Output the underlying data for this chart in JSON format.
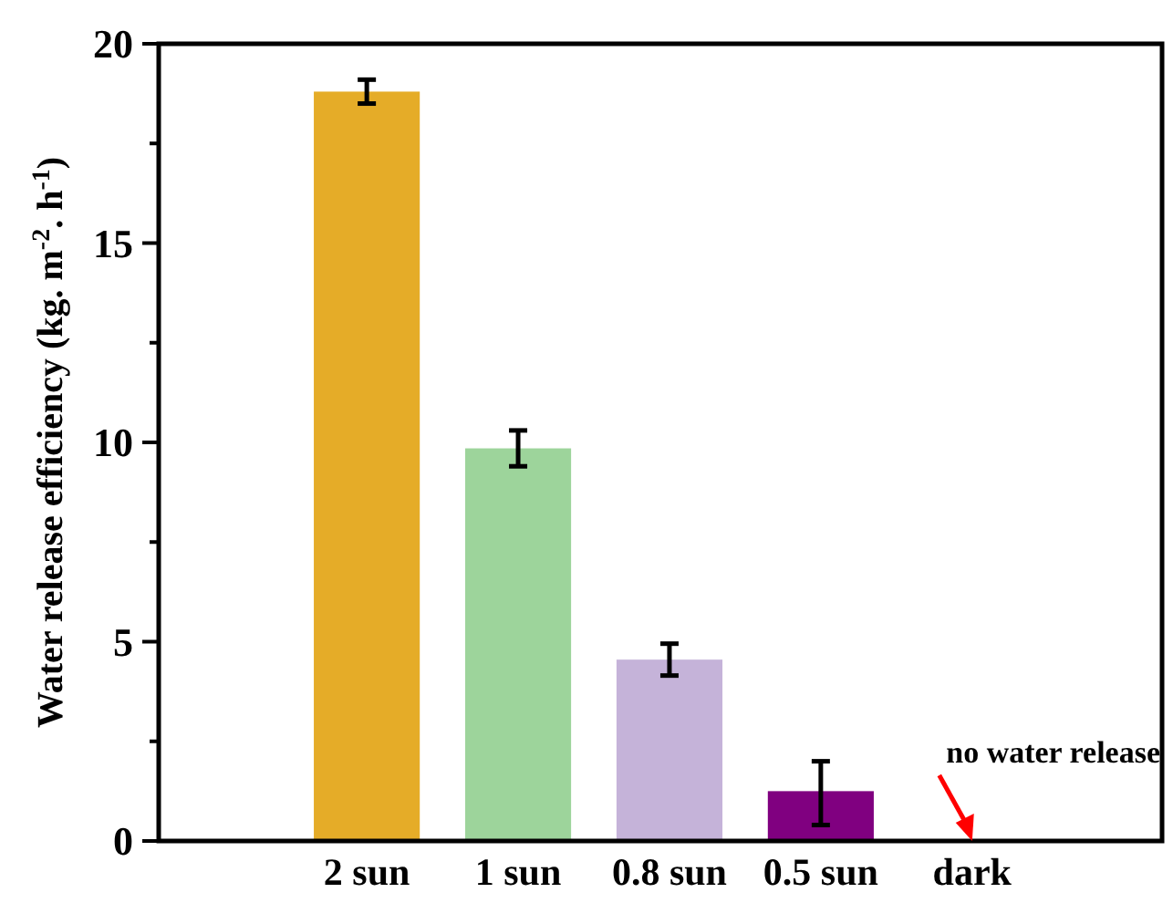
{
  "chart_data": {
    "type": "bar",
    "ylabel": "Water release efficiency (kg. m$^{-2}$. h$^{-1}$)",
    "categories": [
      "2 sun",
      "1 sun",
      "0.8 sun",
      "0.5 sun",
      "dark"
    ],
    "values": [
      18.8,
      9.85,
      4.55,
      1.25,
      0
    ],
    "colors": [
      "#e5ac28",
      "#9dd49b",
      "#c5b3d9",
      "#800080",
      "#800080"
    ],
    "errors": [
      0.3,
      0.45,
      0.4,
      [
        0.4,
        2.0
      ],
      null
    ],
    "ylim": [
      0,
      20
    ],
    "yticks": [
      0,
      {
        "value": 2.5,
        "label": null
      },
      5,
      {
        "value": 7.5,
        "label": null
      },
      10,
      {
        "value": 12.5,
        "label": null
      },
      15,
      {
        "value": 17.5,
        "label": null
      },
      20
    ],
    "annotations": [
      {
        "text": "no water release",
        "x": "dark",
        "y": 0
      }
    ],
    "grid": false
  }
}
